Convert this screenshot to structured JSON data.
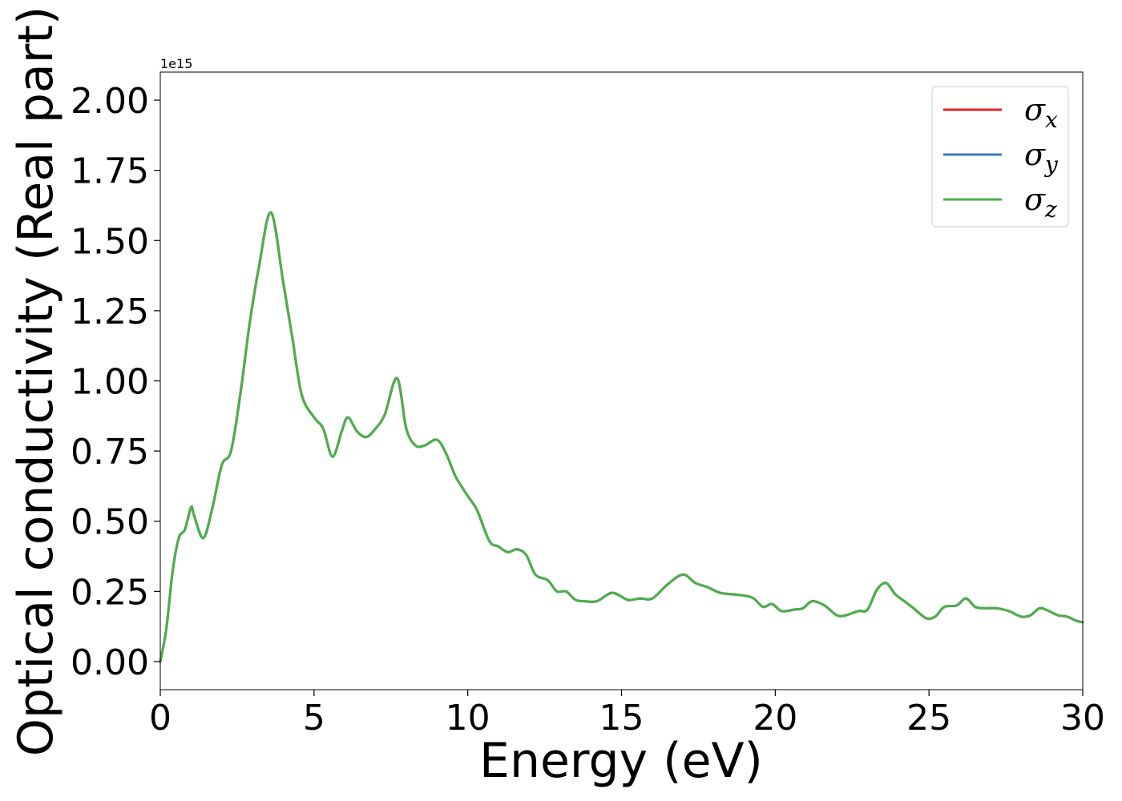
{
  "chart_data": {
    "type": "line",
    "title": "",
    "xlabel": "Energy (eV)",
    "ylabel": "Optical conductivity (Real part)",
    "y_offset_label": "1e15",
    "y_scale": 1000000000000000.0,
    "xlim": [
      0,
      30
    ],
    "ylim": [
      -0.1,
      2.1
    ],
    "x_ticks": [
      0,
      5,
      10,
      15,
      20,
      25,
      30
    ],
    "y_ticks": [
      0.0,
      0.25,
      0.5,
      0.75,
      1.0,
      1.25,
      1.5,
      1.75,
      2.0
    ],
    "grid": false,
    "legend_position": "top-right",
    "series": [
      {
        "name": "σ_x",
        "legend_base": "σ",
        "legend_sub": "x",
        "color": "#d62728",
        "x": [
          0,
          0.2,
          0.4,
          0.6,
          0.8,
          1.0,
          1.1,
          1.4,
          1.7,
          2.0,
          2.3,
          2.6,
          2.9,
          3.2,
          3.6,
          4.0,
          4.3,
          4.6,
          5.0,
          5.3,
          5.6,
          5.9,
          6.1,
          6.4,
          6.7,
          7.0,
          7.3,
          7.7,
          8.0,
          8.3,
          8.6,
          9.0,
          9.3,
          9.6,
          10.0,
          10.3,
          10.7,
          11.0,
          11.3,
          11.6,
          11.9,
          12.2,
          12.6,
          12.9,
          13.2,
          13.5,
          13.8,
          14.2,
          14.7,
          15.2,
          15.6,
          16.0,
          16.5,
          17.0,
          17.4,
          17.8,
          18.2,
          18.6,
          19.0,
          19.3,
          19.6,
          19.9,
          20.2,
          20.6,
          20.9,
          21.2,
          21.6,
          22.0,
          22.3,
          22.7,
          23.0,
          23.3,
          23.6,
          23.9,
          24.2,
          24.5,
          24.9,
          25.2,
          25.5,
          25.9,
          26.2,
          26.5,
          26.8,
          27.2,
          27.6,
          28.0,
          28.3,
          28.6,
          28.9,
          29.2,
          29.5,
          29.8,
          30.0
        ],
        "y": [
          0.0,
          0.12,
          0.32,
          0.44,
          0.47,
          0.55,
          0.52,
          0.44,
          0.55,
          0.7,
          0.75,
          0.95,
          1.2,
          1.4,
          1.6,
          1.35,
          1.15,
          0.95,
          0.87,
          0.83,
          0.73,
          0.82,
          0.87,
          0.82,
          0.8,
          0.83,
          0.88,
          1.01,
          0.83,
          0.77,
          0.77,
          0.79,
          0.74,
          0.66,
          0.59,
          0.54,
          0.43,
          0.41,
          0.39,
          0.4,
          0.38,
          0.31,
          0.29,
          0.25,
          0.25,
          0.22,
          0.215,
          0.215,
          0.245,
          0.22,
          0.225,
          0.225,
          0.275,
          0.31,
          0.28,
          0.265,
          0.245,
          0.24,
          0.235,
          0.225,
          0.195,
          0.205,
          0.18,
          0.185,
          0.19,
          0.215,
          0.2,
          0.165,
          0.165,
          0.18,
          0.185,
          0.255,
          0.28,
          0.24,
          0.215,
          0.19,
          0.155,
          0.16,
          0.195,
          0.2,
          0.225,
          0.195,
          0.19,
          0.19,
          0.18,
          0.16,
          0.165,
          0.19,
          0.18,
          0.165,
          0.16,
          0.145,
          0.14
        ]
      },
      {
        "name": "σ_y",
        "legend_base": "σ",
        "legend_sub": "y",
        "color": "#377eb8",
        "x": [
          0,
          0.2,
          0.4,
          0.6,
          0.8,
          1.0,
          1.1,
          1.4,
          1.7,
          2.0,
          2.3,
          2.6,
          2.9,
          3.2,
          3.6,
          4.0,
          4.3,
          4.6,
          5.0,
          5.3,
          5.6,
          5.9,
          6.1,
          6.4,
          6.7,
          7.0,
          7.3,
          7.7,
          8.0,
          8.3,
          8.6,
          9.0,
          9.3,
          9.6,
          10.0,
          10.3,
          10.7,
          11.0,
          11.3,
          11.6,
          11.9,
          12.2,
          12.6,
          12.9,
          13.2,
          13.5,
          13.8,
          14.2,
          14.7,
          15.2,
          15.6,
          16.0,
          16.5,
          17.0,
          17.4,
          17.8,
          18.2,
          18.6,
          19.0,
          19.3,
          19.6,
          19.9,
          20.2,
          20.6,
          20.9,
          21.2,
          21.6,
          22.0,
          22.3,
          22.7,
          23.0,
          23.3,
          23.6,
          23.9,
          24.2,
          24.5,
          24.9,
          25.2,
          25.5,
          25.9,
          26.2,
          26.5,
          26.8,
          27.2,
          27.6,
          28.0,
          28.3,
          28.6,
          28.9,
          29.2,
          29.5,
          29.8,
          30.0
        ],
        "y": [
          0.0,
          0.12,
          0.32,
          0.44,
          0.47,
          0.55,
          0.52,
          0.44,
          0.55,
          0.7,
          0.75,
          0.95,
          1.2,
          1.4,
          1.6,
          1.35,
          1.15,
          0.95,
          0.87,
          0.83,
          0.73,
          0.82,
          0.87,
          0.82,
          0.8,
          0.83,
          0.88,
          1.01,
          0.83,
          0.77,
          0.77,
          0.79,
          0.74,
          0.66,
          0.59,
          0.54,
          0.43,
          0.41,
          0.39,
          0.4,
          0.38,
          0.31,
          0.29,
          0.25,
          0.25,
          0.22,
          0.215,
          0.215,
          0.245,
          0.22,
          0.225,
          0.225,
          0.275,
          0.31,
          0.28,
          0.265,
          0.245,
          0.24,
          0.235,
          0.225,
          0.195,
          0.205,
          0.18,
          0.185,
          0.19,
          0.215,
          0.2,
          0.165,
          0.165,
          0.18,
          0.185,
          0.255,
          0.28,
          0.24,
          0.215,
          0.19,
          0.155,
          0.16,
          0.195,
          0.2,
          0.225,
          0.195,
          0.19,
          0.19,
          0.18,
          0.16,
          0.165,
          0.19,
          0.18,
          0.165,
          0.16,
          0.145,
          0.14
        ]
      },
      {
        "name": "σ_z",
        "legend_base": "σ",
        "legend_sub": "z",
        "color": "#4daf4a",
        "x": [
          0,
          0.2,
          0.4,
          0.6,
          0.8,
          1.0,
          1.1,
          1.4,
          1.7,
          2.0,
          2.3,
          2.6,
          2.9,
          3.2,
          3.6,
          4.0,
          4.3,
          4.6,
          5.0,
          5.3,
          5.6,
          5.9,
          6.1,
          6.4,
          6.7,
          7.0,
          7.3,
          7.7,
          8.0,
          8.3,
          8.6,
          9.0,
          9.3,
          9.6,
          10.0,
          10.3,
          10.7,
          11.0,
          11.3,
          11.6,
          11.9,
          12.2,
          12.6,
          12.9,
          13.2,
          13.5,
          13.8,
          14.2,
          14.7,
          15.2,
          15.6,
          16.0,
          16.5,
          17.0,
          17.4,
          17.8,
          18.2,
          18.6,
          19.0,
          19.3,
          19.6,
          19.9,
          20.2,
          20.6,
          20.9,
          21.2,
          21.6,
          22.0,
          22.3,
          22.7,
          23.0,
          23.3,
          23.6,
          23.9,
          24.2,
          24.5,
          24.9,
          25.2,
          25.5,
          25.9,
          26.2,
          26.5,
          26.8,
          27.2,
          27.6,
          28.0,
          28.3,
          28.6,
          28.9,
          29.2,
          29.5,
          29.8,
          30.0
        ],
        "y": [
          0.0,
          0.12,
          0.32,
          0.44,
          0.47,
          0.55,
          0.52,
          0.44,
          0.55,
          0.7,
          0.75,
          0.95,
          1.2,
          1.4,
          1.6,
          1.35,
          1.15,
          0.95,
          0.87,
          0.83,
          0.73,
          0.82,
          0.87,
          0.82,
          0.8,
          0.83,
          0.88,
          1.01,
          0.83,
          0.77,
          0.77,
          0.79,
          0.74,
          0.66,
          0.59,
          0.54,
          0.43,
          0.41,
          0.39,
          0.4,
          0.38,
          0.31,
          0.29,
          0.25,
          0.25,
          0.22,
          0.215,
          0.215,
          0.245,
          0.22,
          0.225,
          0.225,
          0.275,
          0.31,
          0.28,
          0.265,
          0.245,
          0.24,
          0.235,
          0.225,
          0.195,
          0.205,
          0.18,
          0.185,
          0.19,
          0.215,
          0.2,
          0.165,
          0.165,
          0.18,
          0.185,
          0.255,
          0.28,
          0.24,
          0.215,
          0.19,
          0.155,
          0.16,
          0.195,
          0.2,
          0.225,
          0.195,
          0.19,
          0.19,
          0.18,
          0.16,
          0.165,
          0.19,
          0.18,
          0.165,
          0.16,
          0.145,
          0.14
        ]
      }
    ]
  }
}
